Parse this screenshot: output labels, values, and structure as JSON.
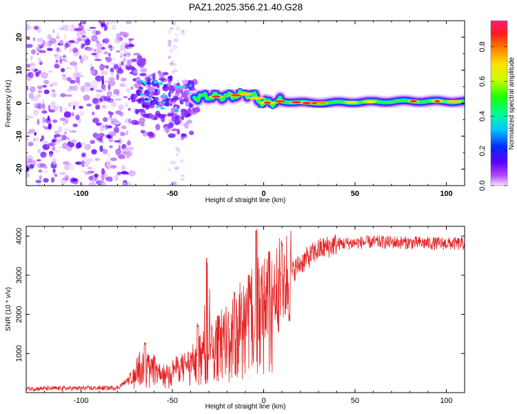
{
  "chart_data": [
    {
      "type": "heatmap",
      "title": "PAZ1.2025.356.21.40.G28",
      "xlabel": "Height of straight line (km)",
      "ylabel": "Frequency (Hz)",
      "xlim": [
        -130,
        110
      ],
      "ylim": [
        -25,
        25
      ],
      "x_ticks": [
        "-100",
        "-50",
        "0",
        "50",
        "100"
      ],
      "y_ticks": [
        "20",
        "10",
        "0",
        "-10",
        "-20"
      ],
      "colorbar": {
        "label": "Normalized spectral amplitude",
        "range": [
          0,
          0.95
        ],
        "ticks": [
          "0.0",
          "0.2",
          "0.4",
          "0.6",
          "0.8"
        ]
      },
      "ridge": [
        {
          "x": -72,
          "y": 7
        },
        {
          "x": -60,
          "y": 3
        },
        {
          "x": -45,
          "y": 1
        },
        {
          "x": -35,
          "y": 2
        },
        {
          "x": -20,
          "y": 2
        },
        {
          "x": -8,
          "y": 3
        },
        {
          "x": 0,
          "y": 0
        },
        {
          "x": 10,
          "y": 0.6
        },
        {
          "x": 25,
          "y": 0
        },
        {
          "x": 50,
          "y": 0.3
        },
        {
          "x": 80,
          "y": 0.6
        },
        {
          "x": 110,
          "y": 0.5
        }
      ]
    },
    {
      "type": "line",
      "xlabel": "Height of straight line (km)",
      "ylabel": "SNR (10 * v/v)",
      "xlim": [
        -130,
        110
      ],
      "ylim": [
        0,
        4250
      ],
      "x_ticks": [
        "-100",
        "-50",
        "0",
        "50",
        "100"
      ],
      "y_ticks": [
        "1000",
        "2000",
        "3000",
        "4000"
      ],
      "series_color": "#e32222",
      "envelope": [
        {
          "x": -130,
          "y": 100
        },
        {
          "x": -80,
          "y": 120
        },
        {
          "x": -72,
          "y": 400
        },
        {
          "x": -64,
          "y": 700
        },
        {
          "x": -55,
          "y": 500
        },
        {
          "x": -40,
          "y": 800
        },
        {
          "x": -30,
          "y": 1300
        },
        {
          "x": -20,
          "y": 1600
        },
        {
          "x": -10,
          "y": 2100
        },
        {
          "x": 0,
          "y": 2400
        },
        {
          "x": 10,
          "y": 2800
        },
        {
          "x": 20,
          "y": 3300
        },
        {
          "x": 30,
          "y": 3650
        },
        {
          "x": 40,
          "y": 3800
        },
        {
          "x": 60,
          "y": 3850
        },
        {
          "x": 110,
          "y": 3800
        }
      ],
      "spikes": [
        {
          "x": -68,
          "y": 1100
        },
        {
          "x": -65,
          "y": 1300
        },
        {
          "x": -60,
          "y": 1000
        },
        {
          "x": -36,
          "y": 1800
        },
        {
          "x": -31,
          "y": 3450
        },
        {
          "x": -25,
          "y": 2000
        },
        {
          "x": -16,
          "y": 2600
        },
        {
          "x": -8,
          "y": 3100
        },
        {
          "x": -4,
          "y": 4200
        },
        {
          "x": 3,
          "y": 3700
        },
        {
          "x": 10,
          "y": 3900
        }
      ]
    }
  ]
}
